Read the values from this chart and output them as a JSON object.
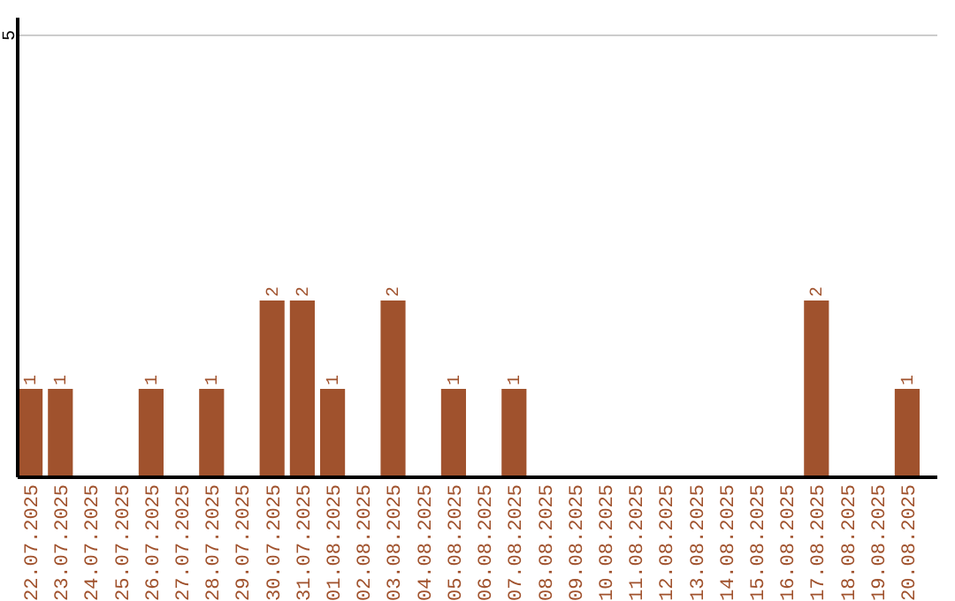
{
  "chart_data": {
    "type": "bar",
    "categories": [
      "22.07.2025",
      "23.07.2025",
      "24.07.2025",
      "25.07.2025",
      "26.07.2025",
      "27.07.2025",
      "28.07.2025",
      "29.07.2025",
      "30.07.2025",
      "31.07.2025",
      "01.08.2025",
      "02.08.2025",
      "03.08.2025",
      "04.08.2025",
      "05.08.2025",
      "06.08.2025",
      "07.08.2025",
      "08.08.2025",
      "09.08.2025",
      "10.08.2025",
      "11.08.2025",
      "12.08.2025",
      "13.08.2025",
      "14.08.2025",
      "15.08.2025",
      "16.08.2025",
      "17.08.2025",
      "18.08.2025",
      "19.08.2025",
      "20.08.2025"
    ],
    "values": [
      1,
      1,
      0,
      0,
      1,
      0,
      1,
      0,
      2,
      2,
      1,
      0,
      2,
      0,
      1,
      0,
      1,
      0,
      0,
      0,
      0,
      0,
      0,
      0,
      0,
      0,
      2,
      0,
      0,
      1
    ],
    "value_labels": [
      "1",
      "1",
      null,
      null,
      "1",
      null,
      "1",
      null,
      "2",
      "2",
      "1",
      null,
      "2",
      null,
      "1",
      null,
      "1",
      null,
      null,
      null,
      null,
      null,
      null,
      null,
      null,
      null,
      "2",
      null,
      null,
      "1"
    ],
    "color": "#a0522d",
    "ylim": [
      0,
      5.2
    ],
    "yticks": [
      5
    ],
    "grid": "y"
  }
}
